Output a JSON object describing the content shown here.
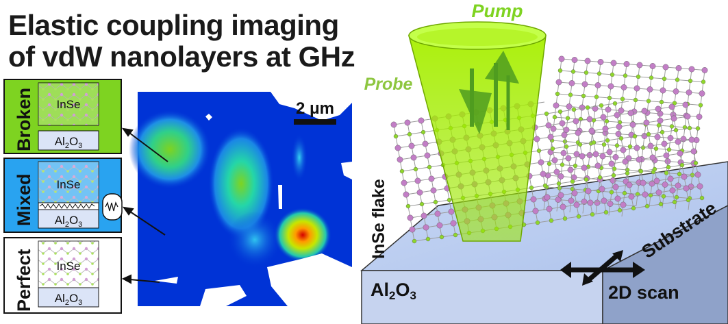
{
  "title": {
    "line1": "Elastic coupling imaging",
    "line2": "of vdW nanolayers at GHz"
  },
  "panels": [
    {
      "label": "Broken",
      "top_layer": "InSe",
      "substrate": "Al",
      "sub2": "2",
      "sub_o": "O",
      "sub3": "3",
      "color": "#7ed321"
    },
    {
      "label": "Mixed",
      "top_layer": "InSe",
      "substrate": "Al",
      "sub2": "2",
      "sub_o": "O",
      "sub3": "3",
      "color": "#29a3f0"
    },
    {
      "label": "Perfect",
      "top_layer": "InSe",
      "substrate": "Al",
      "sub2": "2",
      "sub_o": "O",
      "sub3": "3",
      "color": "#ffffff"
    }
  ],
  "map": {
    "scale_label": "2 μm"
  },
  "scene": {
    "pump_label": "Pump",
    "probe_label": "Probe",
    "flake_label": "InSe flake",
    "substrate_label": "Substrate",
    "scan_label": "2D scan",
    "al_text": "Al",
    "al_sub2": "2",
    "al_o": "O",
    "al_sub3": "3"
  },
  "colors": {
    "green": "#7ed321",
    "blue_panel": "#29a3f0",
    "map_bg": "#0033d6",
    "atom_pink": "#c27ec6",
    "atom_green": "#8fd62b",
    "beam": "#a8f000"
  }
}
